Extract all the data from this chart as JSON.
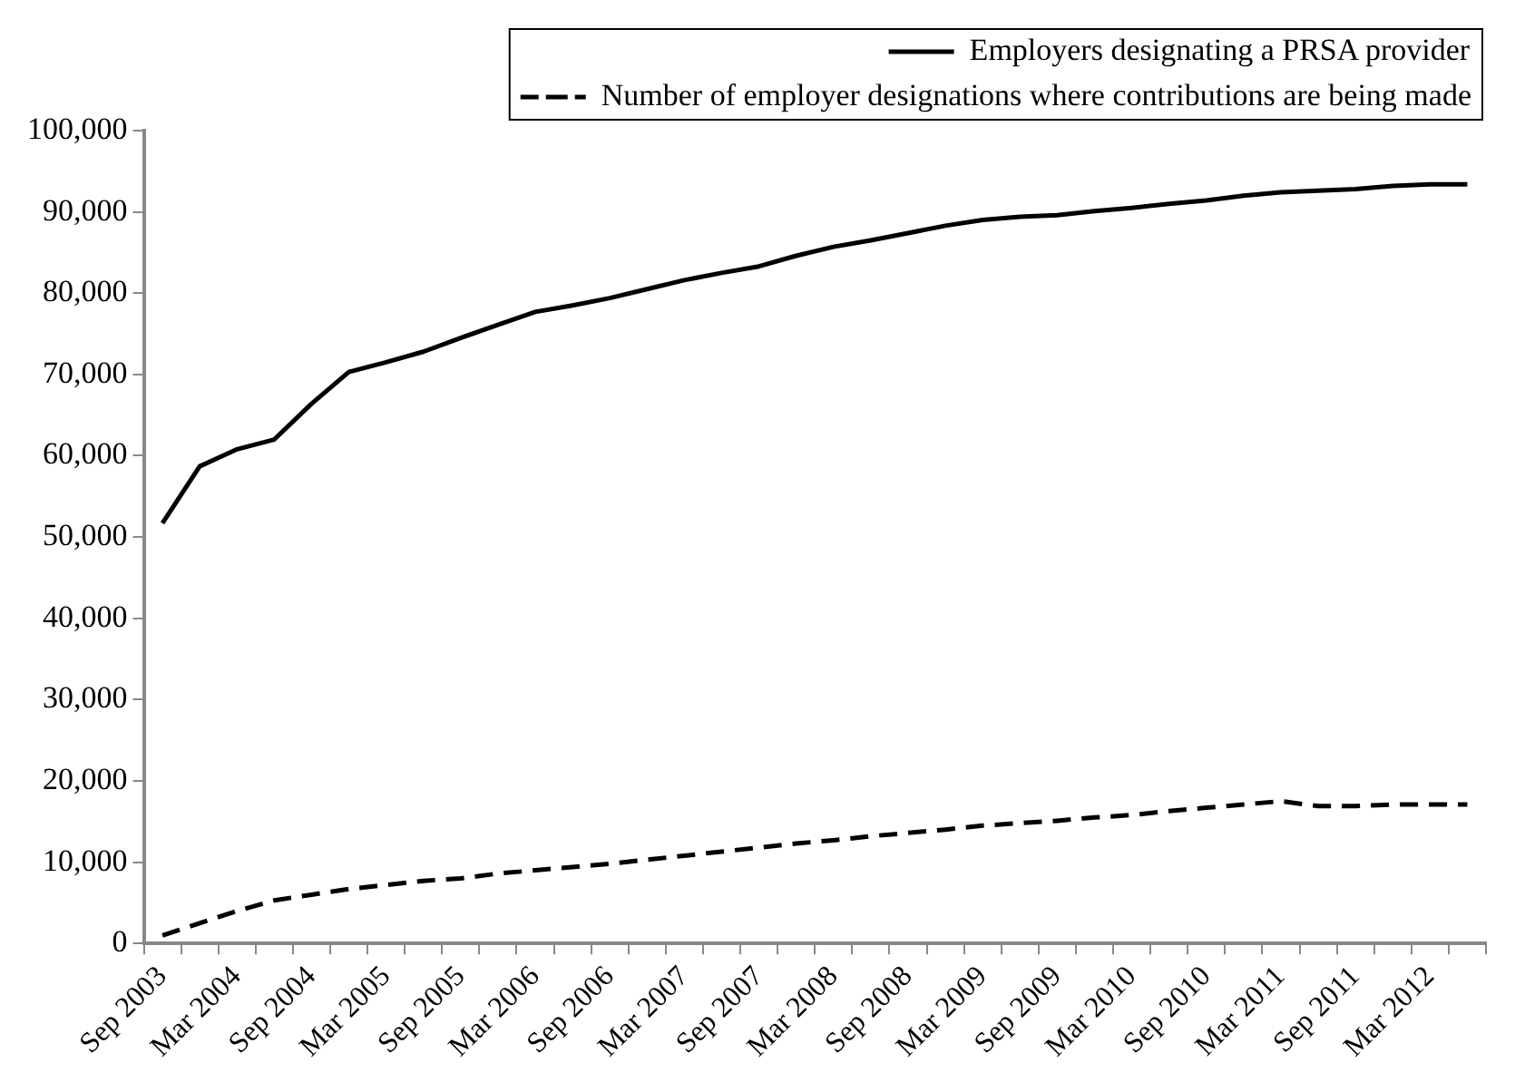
{
  "chart_data": {
    "type": "line",
    "categories": [
      "Sep 2003",
      null,
      "Mar 2004",
      null,
      "Sep 2004",
      null,
      "Mar 2005",
      null,
      "Sep 2005",
      null,
      "Mar 2006",
      null,
      "Sep 2006",
      null,
      "Mar 2007",
      null,
      "Sep 2007",
      null,
      "Mar 2008",
      null,
      "Sep 2008",
      null,
      "Mar 2009",
      null,
      "Sep 2009",
      null,
      "Mar 2010",
      null,
      "Sep 2010",
      null,
      "Mar 2011",
      null,
      "Sep 2011",
      null,
      "Mar 2012",
      null
    ],
    "series": [
      {
        "name": "Employers designating a PRSA provider",
        "color": "#000000",
        "line_style": "solid",
        "values": [
          51700,
          58700,
          60800,
          62000,
          66400,
          70300,
          71500,
          72800,
          74500,
          76100,
          77700,
          78500,
          79400,
          80500,
          81600,
          82500,
          83300,
          84600,
          85700,
          86500,
          87400,
          88300,
          89000,
          89400,
          89600,
          90100,
          90500,
          91000,
          91400,
          92000,
          92400,
          92600,
          92800,
          93200,
          93400,
          93400
        ]
      },
      {
        "name": "Number of employer designations where contributions are being made",
        "color": "#000000",
        "line_style": "dashed",
        "values": [
          1000,
          2500,
          4000,
          5300,
          6000,
          6700,
          7200,
          7700,
          8000,
          8600,
          9000,
          9400,
          9800,
          10300,
          10800,
          11300,
          11800,
          12300,
          12700,
          13200,
          13600,
          14000,
          14500,
          14800,
          15100,
          15500,
          15800,
          16300,
          16700,
          17100,
          17500,
          16900,
          16900,
          17100,
          17100,
          17100
        ]
      }
    ],
    "ylim": [
      0,
      100000
    ],
    "yticks": [
      0,
      {
        "value": 10000,
        "label": "10,000"
      },
      {
        "value": 20000,
        "label": "20,000"
      },
      {
        "value": 30000,
        "label": "30,000"
      },
      {
        "value": 40000,
        "label": "40,000"
      },
      {
        "value": 50000,
        "label": "50,000"
      },
      {
        "value": 60000,
        "label": "60,000"
      },
      {
        "value": 70000,
        "label": "70,000"
      },
      {
        "value": 80000,
        "label": "80,000"
      },
      {
        "value": 90000,
        "label": "90,000"
      },
      {
        "value": 100000,
        "label": "100,000"
      }
    ],
    "grid": false,
    "legend": "top",
    "marker": "none"
  }
}
